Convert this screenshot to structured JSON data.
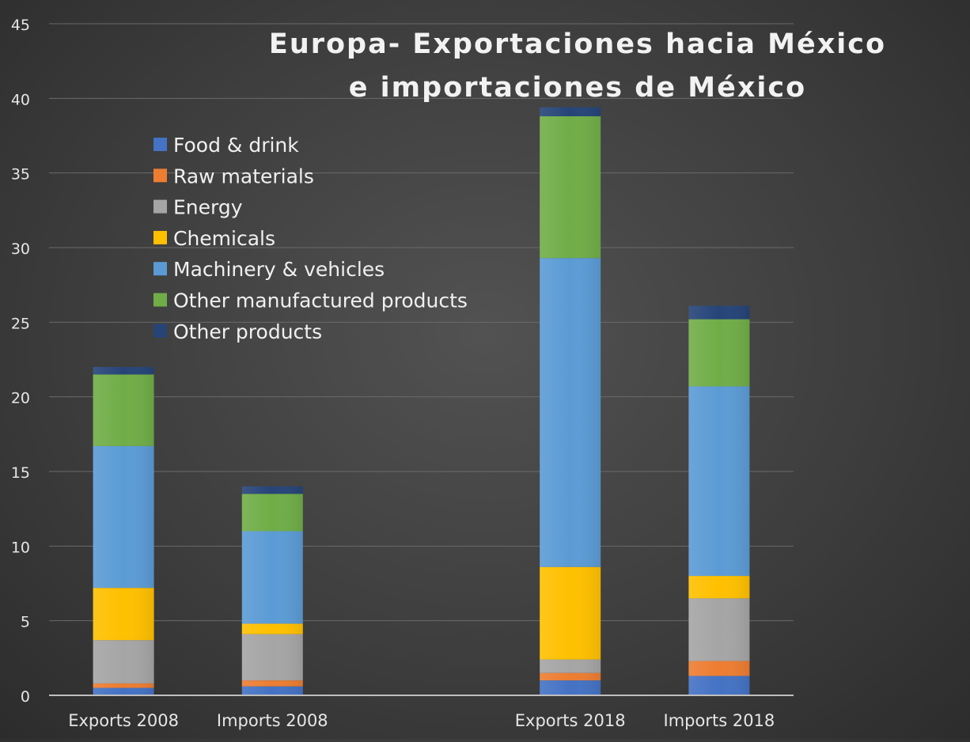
{
  "chart_data": {
    "type": "bar",
    "stacked": true,
    "title_lines": [
      "Europa- Exportaciones hacia México",
      "e importaciones de México"
    ],
    "categories": [
      "Exports 2008",
      "Imports 2008",
      "Exports 2018",
      "Imports 2018"
    ],
    "series": [
      {
        "name": "Food & drink",
        "color": "#4472c4",
        "values": [
          0.5,
          0.6,
          1.0,
          1.3
        ]
      },
      {
        "name": "Raw materials",
        "color": "#ed7d31",
        "values": [
          0.3,
          0.4,
          0.5,
          1.0
        ]
      },
      {
        "name": "Energy",
        "color": "#a5a5a5",
        "values": [
          2.9,
          3.1,
          0.9,
          4.2
        ]
      },
      {
        "name": "Chemicals",
        "color": "#ffc000",
        "values": [
          3.5,
          0.7,
          6.2,
          1.5
        ]
      },
      {
        "name": "Machinery & vehicles",
        "color": "#5b9bd5",
        "values": [
          9.5,
          6.2,
          20.7,
          12.7
        ]
      },
      {
        "name": "Other manufactured products",
        "color": "#70ad47",
        "values": [
          4.8,
          2.5,
          9.5,
          4.5
        ]
      },
      {
        "name": "Other products",
        "color": "#264478",
        "values": [
          0.5,
          0.5,
          0.6,
          0.9
        ]
      }
    ],
    "ylim": [
      0,
      45
    ],
    "yticks": [
      0,
      5,
      10,
      15,
      20,
      25,
      30,
      35,
      40,
      45
    ],
    "grid": true,
    "legend": "top-left"
  }
}
